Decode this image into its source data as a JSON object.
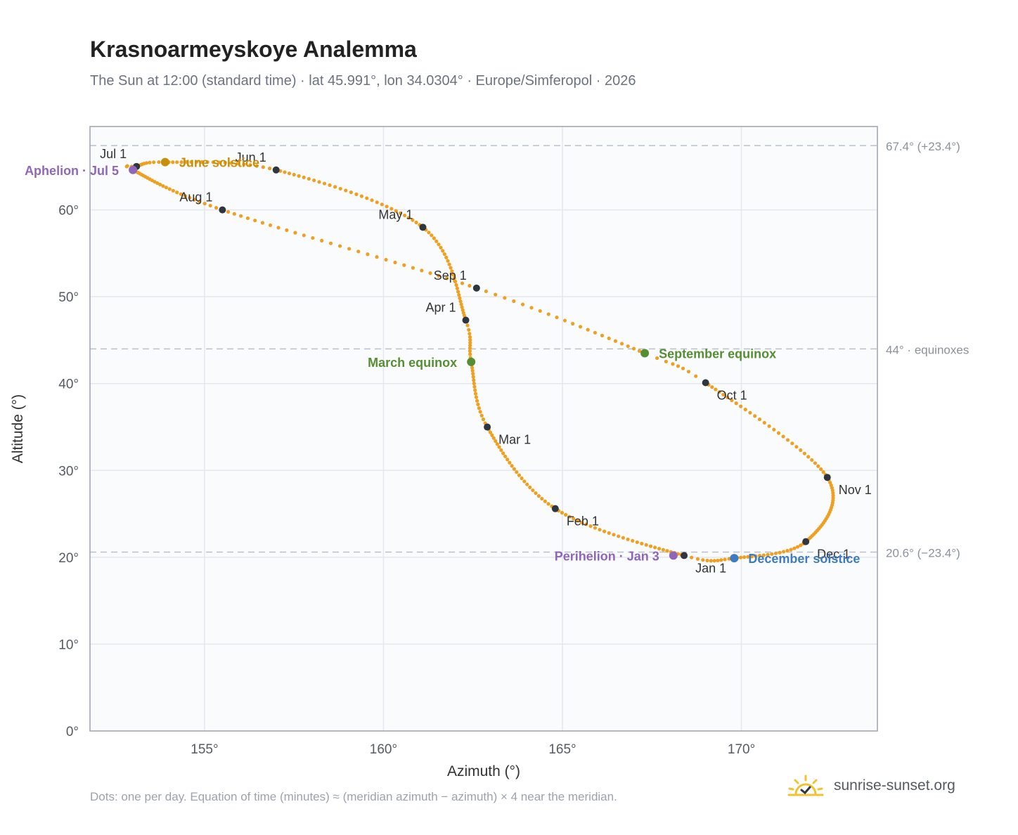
{
  "header": {
    "title": "Krasnoarmeyskoye Analemma",
    "subtitle": "The Sun at 12:00 (standard time) · lat 45.991°, lon 34.0304° · Europe/Simferopol · 2026"
  },
  "footer": {
    "note": "Dots: one per day. Equation of time (minutes) ≈ (meridian azimuth − azimuth) × 4 near the meridian.",
    "brand": "sunrise-sunset.org",
    "brand_icon": "sun-icon"
  },
  "colors": {
    "path": "#f0a020",
    "month_marker": "#2f3640",
    "solstice_june": "#c8900a",
    "solstice_december": "#3d7cc0",
    "equinox": "#568f33",
    "apsis": "#9067b8",
    "plot_bg": "#fafbfd",
    "grid": "#e3e7ee",
    "frame": "#9aa3b2",
    "ref_line": "#b7c1cc"
  },
  "chart_data": {
    "type": "scatter",
    "title": "Krasnoarmeyskoye Analemma",
    "xlabel": "Azimuth (°)",
    "ylabel": "Altitude (°)",
    "xlim": [
      151.8,
      173.8
    ],
    "ylim": [
      0,
      69.6
    ],
    "xticks": [
      155,
      160,
      165,
      170
    ],
    "yticks": [
      0,
      10,
      20,
      30,
      40,
      50,
      60
    ],
    "grid": true,
    "x_tick_suffix": "°",
    "y_tick_suffix": "°",
    "reference_lines": [
      {
        "y": 67.4,
        "label": "67.4° (+23.4°)"
      },
      {
        "y": 44.0,
        "label": "44° · equinoxes"
      },
      {
        "y": 20.6,
        "label": "20.6° (−23.4°)"
      }
    ],
    "path_keypoints": [
      {
        "day": 0,
        "az": 168.4,
        "alt": 20.2
      },
      {
        "day": 31,
        "az": 164.8,
        "alt": 25.6
      },
      {
        "day": 59,
        "az": 162.9,
        "alt": 35.0
      },
      {
        "day": 78,
        "az": 162.45,
        "alt": 42.5
      },
      {
        "day": 90,
        "az": 162.3,
        "alt": 47.3
      },
      {
        "day": 120,
        "az": 161.1,
        "alt": 58.0
      },
      {
        "day": 151,
        "az": 157.0,
        "alt": 64.6
      },
      {
        "day": 171,
        "az": 153.9,
        "alt": 65.5
      },
      {
        "day": 181,
        "az": 153.1,
        "alt": 65.0
      },
      {
        "day": 185,
        "az": 153.0,
        "alt": 64.6
      },
      {
        "day": 212,
        "az": 155.5,
        "alt": 60.0
      },
      {
        "day": 243,
        "az": 162.6,
        "alt": 51.0
      },
      {
        "day": 265,
        "az": 167.3,
        "alt": 43.5
      },
      {
        "day": 273,
        "az": 169.0,
        "alt": 40.1
      },
      {
        "day": 304,
        "az": 172.4,
        "alt": 29.2
      },
      {
        "day": 334,
        "az": 171.8,
        "alt": 21.8
      },
      {
        "day": 354,
        "az": 169.8,
        "alt": 19.9
      },
      {
        "day": 365,
        "az": 168.4,
        "alt": 20.2
      }
    ],
    "month_markers": [
      {
        "label": "Jan 1",
        "az": 168.4,
        "alt": 20.2,
        "label_pos": "below-right"
      },
      {
        "label": "Feb 1",
        "az": 164.8,
        "alt": 25.6,
        "label_pos": "below-right"
      },
      {
        "label": "Mar 1",
        "az": 162.9,
        "alt": 35.0,
        "label_pos": "below-right"
      },
      {
        "label": "Apr 1",
        "az": 162.3,
        "alt": 47.3,
        "label_pos": "above-left"
      },
      {
        "label": "May 1",
        "az": 161.1,
        "alt": 58.0,
        "label_pos": "above-left"
      },
      {
        "label": "Jun 1",
        "az": 157.0,
        "alt": 64.6,
        "label_pos": "above-left"
      },
      {
        "label": "Jul 1",
        "az": 153.1,
        "alt": 65.0,
        "label_pos": "above-left"
      },
      {
        "label": "Aug 1",
        "az": 155.5,
        "alt": 60.0,
        "label_pos": "above-left"
      },
      {
        "label": "Sep 1",
        "az": 162.6,
        "alt": 51.0,
        "label_pos": "above-left"
      },
      {
        "label": "Oct 1",
        "az": 169.0,
        "alt": 40.1,
        "label_pos": "below-right"
      },
      {
        "label": "Nov 1",
        "az": 172.4,
        "alt": 29.2,
        "label_pos": "below-right"
      },
      {
        "label": "Dec 1",
        "az": 171.8,
        "alt": 21.8,
        "label_pos": "below-right"
      }
    ],
    "events": [
      {
        "label": "June solstice",
        "az": 153.9,
        "alt": 65.5,
        "color_key": "solstice_june",
        "label_pos": "right"
      },
      {
        "label": "December solstice",
        "az": 169.8,
        "alt": 19.9,
        "color_key": "solstice_december",
        "label_pos": "right"
      },
      {
        "label": "March equinox",
        "az": 162.45,
        "alt": 42.5,
        "color_key": "equinox",
        "label_pos": "left"
      },
      {
        "label": "September equinox",
        "az": 167.3,
        "alt": 43.5,
        "color_key": "equinox",
        "label_pos": "right"
      },
      {
        "label": "Aphelion · Jul 5",
        "az": 153.0,
        "alt": 64.6,
        "color_key": "apsis",
        "label_pos": "left"
      },
      {
        "label": "Perihelion · Jan 3",
        "az": 168.1,
        "alt": 20.2,
        "color_key": "apsis",
        "label_pos": "left"
      }
    ]
  }
}
